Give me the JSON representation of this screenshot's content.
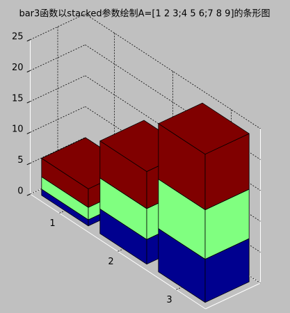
{
  "chart_data": {
    "type": "bar3",
    "stacked": true,
    "title": "bar3函数以stacked参数绘制A=[1 2 3;4 5 6;7 8 9]的条形图",
    "categories": [
      "1",
      "2",
      "3"
    ],
    "series": [
      {
        "color": "#00008f",
        "values": [
          1,
          4,
          7
        ]
      },
      {
        "color": "#80ff80",
        "values": [
          2,
          5,
          8
        ]
      },
      {
        "color": "#800000",
        "values": [
          3,
          6,
          9
        ]
      }
    ],
    "zlim": [
      0,
      25
    ],
    "zticks": [
      0,
      5,
      10,
      15,
      20,
      25
    ],
    "grid": true
  }
}
